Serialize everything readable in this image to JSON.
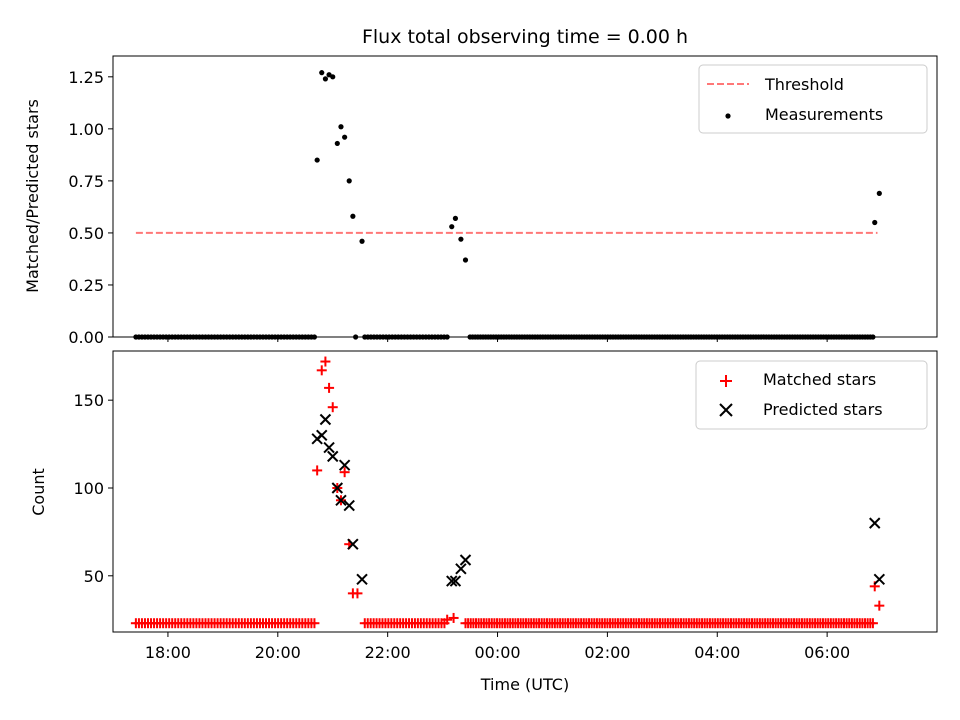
{
  "chart_data": [
    {
      "type": "scatter",
      "title": "Flux total observing time = 0.00 h",
      "xlabel": "",
      "ylabel": "Matched/Predicted stars",
      "xlim": [
        "17:00",
        "08:00"
      ],
      "ylim": [
        0,
        1.35
      ],
      "x_ticks": [
        "18:00",
        "20:00",
        "22:00",
        "00:00",
        "02:00",
        "04:00",
        "06:00"
      ],
      "y_ticks": [
        "0.00",
        "0.25",
        "0.50",
        "0.75",
        "1.00",
        "1.25"
      ],
      "legend_position": "upper right",
      "series": [
        {
          "name": "Threshold",
          "style": "dashed-line",
          "color": "#ff7777",
          "points": [
            [
              "17:25",
              0.5
            ],
            [
              "06:55",
              0.5
            ]
          ]
        },
        {
          "name": "Measurements",
          "style": "dot",
          "color": "#000000",
          "points": [
            [
              "20:43",
              0.85
            ],
            [
              "20:48",
              1.27
            ],
            [
              "20:52",
              1.24
            ],
            [
              "20:56",
              1.26
            ],
            [
              "21:00",
              1.25
            ],
            [
              "21:05",
              0.93
            ],
            [
              "21:09",
              1.01
            ],
            [
              "21:13",
              0.96
            ],
            [
              "21:18",
              0.75
            ],
            [
              "21:22",
              0.58
            ],
            [
              "21:32",
              0.46
            ],
            [
              "23:10",
              0.53
            ],
            [
              "23:14",
              0.57
            ],
            [
              "23:20",
              0.47
            ],
            [
              "23:25",
              0.37
            ],
            [
              "06:52",
              0.55
            ],
            [
              "06:57",
              0.69
            ]
          ],
          "zero_runs": [
            [
              "17:25",
              "20:40",
              60
            ],
            [
              "21:25",
              "21:27",
              1
            ],
            [
              "21:35",
              "23:05",
              28
            ],
            [
              "23:30",
              "06:50",
              156
            ]
          ]
        }
      ]
    },
    {
      "type": "scatter",
      "title": "",
      "xlabel": "Time (UTC)",
      "ylabel": "Count",
      "xlim": [
        "17:00",
        "08:00"
      ],
      "ylim": [
        18,
        178
      ],
      "x_ticks": [
        "18:00",
        "20:00",
        "22:00",
        "00:00",
        "02:00",
        "04:00",
        "06:00"
      ],
      "y_ticks": [
        "50",
        "100",
        "150"
      ],
      "legend_position": "upper right",
      "series": [
        {
          "name": "Matched stars",
          "marker": "plus",
          "color": "#ff0000",
          "points": [
            [
              "20:43",
              110
            ],
            [
              "20:48",
              167
            ],
            [
              "20:52",
              172
            ],
            [
              "20:56",
              157
            ],
            [
              "21:00",
              146
            ],
            [
              "21:05",
              100
            ],
            [
              "21:09",
              93
            ],
            [
              "21:13",
              109
            ],
            [
              "21:18",
              68
            ],
            [
              "21:22",
              40
            ],
            [
              "21:27",
              40
            ],
            [
              "23:05",
              25
            ],
            [
              "23:12",
              26
            ],
            [
              "06:52",
              44
            ],
            [
              "06:57",
              33
            ]
          ],
          "baseline_runs": [
            [
              "17:25",
              "20:40",
              23,
              60
            ],
            [
              "21:35",
              "23:02",
              23,
              28
            ],
            [
              "23:25",
              "06:50",
              23,
              156
            ]
          ]
        },
        {
          "name": "Predicted stars",
          "marker": "x",
          "color": "#000000",
          "points": [
            [
              "20:43",
              128
            ],
            [
              "20:48",
              130
            ],
            [
              "20:52",
              139
            ],
            [
              "20:56",
              123
            ],
            [
              "21:00",
              118
            ],
            [
              "21:05",
              100
            ],
            [
              "21:09",
              93
            ],
            [
              "21:13",
              113
            ],
            [
              "21:18",
              90
            ],
            [
              "21:22",
              68
            ],
            [
              "21:32",
              48
            ],
            [
              "23:10",
              47
            ],
            [
              "23:14",
              47
            ],
            [
              "23:20",
              54
            ],
            [
              "23:25",
              59
            ],
            [
              "06:52",
              80
            ],
            [
              "06:57",
              48
            ]
          ]
        }
      ]
    }
  ]
}
